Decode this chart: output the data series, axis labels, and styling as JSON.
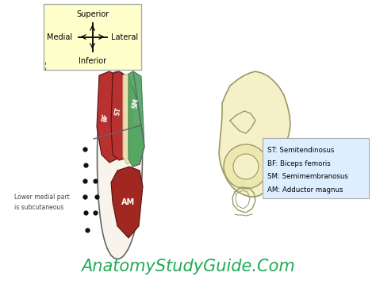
{
  "bg_color": "#ffffff",
  "compass_box_color": "#ffffcc",
  "compass_box_edge": "#aaaaaa",
  "legend_box_color": "#ddeeff",
  "legend_box_edge": "#aaaaaa",
  "legend_texts": [
    "ST: Semitendinosus",
    "BF: Biceps femoris",
    "SM: Semimembranosus",
    "AM: Adductor magnus"
  ],
  "footer_text": "AnatomyStudyGuide.Com",
  "footer_color": "#22aa55",
  "footer_fontsize": 15,
  "muscle_outline_color": "#666666",
  "thigh_fill": "#f8f4ec",
  "ST_color": "#b83030",
  "BF_color": "#b83030",
  "SM_color": "#3a9a50",
  "AM_color": "#a02820",
  "tendon_color": "#e8ddb0",
  "pelvis_fill": "#f5f0c8",
  "pelvis_edge": "#999966",
  "dot_color": "#111111",
  "lower_medial_text": "Lower medial part\nis subcutaneous",
  "annotation_color": "#444444"
}
